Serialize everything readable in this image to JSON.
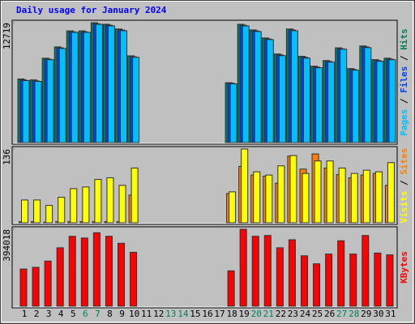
{
  "chart_data": [
    {
      "type": "bar",
      "title": "Daily usage for January 2024",
      "title_color": "#0000ff",
      "ylim": [
        0,
        12719
      ],
      "yticks": [
        12719
      ],
      "legend_separator": " / ",
      "series": [
        {
          "name": "Hits",
          "color": "#00805c",
          "values": [
            6750,
            6650,
            8950,
            10150,
            11850,
            11850,
            12719,
            12550,
            12050,
            9200,
            0,
            0,
            0,
            0,
            0,
            0,
            0,
            6350,
            12550,
            11950,
            11100,
            9400,
            12050,
            9150,
            8100,
            8700,
            10050,
            7850,
            10250,
            8800,
            8950
          ]
        },
        {
          "name": "Files",
          "color": "#0040ff",
          "values": [
            6650,
            6550,
            8850,
            10050,
            11750,
            11750,
            12600,
            12450,
            11950,
            9100,
            0,
            0,
            0,
            0,
            0,
            0,
            0,
            6300,
            12450,
            11850,
            11000,
            9300,
            11950,
            9050,
            8000,
            8600,
            9950,
            7750,
            10150,
            8700,
            8850
          ]
        },
        {
          "name": "Pages",
          "color": "#00c0ff",
          "values": [
            6573,
            6488,
            8792,
            9987,
            11694,
            11694,
            12548,
            12377,
            11865,
            9048,
            0,
            0,
            0,
            0,
            0,
            0,
            0,
            6232,
            12377,
            11780,
            10926,
            9219,
            11865,
            8963,
            7939,
            8536,
            9902,
            7683,
            10072,
            8621,
            8792
          ]
        }
      ]
    },
    {
      "type": "bar",
      "ylim": [
        0,
        136
      ],
      "yticks": [
        136
      ],
      "legend_separator": " / ",
      "series": [
        {
          "name": "Sites",
          "color": "#ff8000",
          "values": [
            2,
            2,
            1,
            2,
            2,
            2,
            2,
            2,
            2,
            51,
            0,
            0,
            0,
            0,
            0,
            0,
            0,
            54,
            104,
            88,
            86,
            73,
            123,
            99,
            127,
            101,
            89,
            83,
            88,
            91,
            69
          ]
        },
        {
          "name": "Visits",
          "color": "#ffff00",
          "values": [
            42,
            42,
            32,
            47,
            63,
            66,
            80,
            83,
            69,
            101,
            0,
            0,
            0,
            0,
            0,
            0,
            0,
            57,
            136,
            94,
            88,
            105,
            124,
            91,
            114,
            114,
            101,
            91,
            97,
            94,
            111
          ]
        }
      ]
    },
    {
      "type": "bar",
      "ylim": [
        0,
        394018
      ],
      "yticks": [
        394018
      ],
      "legend_separator": " / ",
      "categories": [
        "1",
        "2",
        "3",
        "4",
        "5",
        "6",
        "7",
        "8",
        "9",
        "10",
        "11",
        "12",
        "13",
        "14",
        "15",
        "16",
        "17",
        "18",
        "19",
        "20",
        "21",
        "22",
        "23",
        "24",
        "25",
        "26",
        "27",
        "28",
        "29",
        "30",
        "31"
      ],
      "category_colors": [
        "#000000",
        "#000000",
        "#000000",
        "#000000",
        "#000000",
        "#00805c",
        "#00805c",
        "#000000",
        "#000000",
        "#000000",
        "#000000",
        "#000000",
        "#00805c",
        "#00805c",
        "#000000",
        "#000000",
        "#000000",
        "#000000",
        "#000000",
        "#00805c",
        "#00805c",
        "#000000",
        "#000000",
        "#000000",
        "#000000",
        "#000000",
        "#00805c",
        "#00805c",
        "#000000",
        "#000000",
        "#000000"
      ],
      "series": [
        {
          "name": "KBytes",
          "color": "#ff0000",
          "values": [
            190218,
            199000,
            231000,
            299000,
            358000,
            349000,
            376000,
            358000,
            322000,
            276000,
            0,
            0,
            0,
            0,
            0,
            0,
            0,
            181000,
            394018,
            358000,
            362000,
            299000,
            340000,
            258000,
            217000,
            267000,
            335000,
            267000,
            362000,
            272000,
            263000
          ]
        }
      ]
    }
  ]
}
